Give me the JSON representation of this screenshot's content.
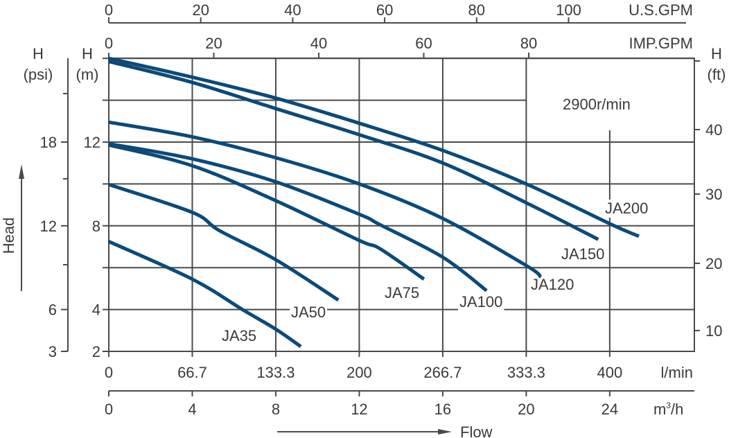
{
  "chart_data": {
    "type": "line",
    "annotation": "2900r/min",
    "colors": {
      "curve": "#0b4a7a",
      "grid": "#4a4a4a",
      "text": "#3a3a3a"
    },
    "grid": true,
    "x_axis": {
      "label": "Flow",
      "unit": "m3/h",
      "unit_main": "m",
      "unit_sup": "3",
      "unit_rest": "/h",
      "range": [
        0,
        28
      ],
      "ticks": [
        0,
        4,
        8,
        12,
        16,
        20,
        24
      ]
    },
    "x_axis_lmin": {
      "unit": "l/min",
      "ticks": [
        "0",
        "66.7",
        "133.3",
        "200",
        "266.7",
        "333.3",
        "400"
      ]
    },
    "x_axis_usgpm": {
      "unit": "U.S.GPM",
      "ticks": [
        "0",
        "20",
        "40",
        "60",
        "80",
        "100"
      ]
    },
    "x_axis_impgpm": {
      "unit": "IMP.GPM",
      "ticks": [
        "0",
        "20",
        "40",
        "60",
        "80"
      ]
    },
    "y_axis": {
      "label": "Head",
      "unit_top": "H",
      "unit": "(m)",
      "range": [
        2,
        16
      ],
      "ticks": [
        2,
        4,
        8,
        12
      ]
    },
    "y_axis_psi": {
      "unit_top": "H",
      "unit": "(psi)",
      "ticks": [
        "3",
        "6",
        "12",
        "18"
      ]
    },
    "y_axis_ft": {
      "unit_top": "H",
      "unit": "(ft)",
      "ticks": [
        "10",
        "20",
        "30",
        "40"
      ]
    },
    "series": [
      {
        "name": "JA35",
        "x": [
          0,
          4,
          6.4,
          8,
          9.2
        ],
        "y": [
          7.25,
          5.45,
          4.0,
          3.06,
          2.23
        ]
      },
      {
        "name": "JA50",
        "x": [
          0,
          4,
          5.3,
          8,
          11.0
        ],
        "y": [
          9.97,
          8.64,
          7.77,
          6.38,
          4.45
        ]
      },
      {
        "name": "JA75",
        "x": [
          0,
          4,
          8,
          12,
          13,
          15.1
        ],
        "y": [
          11.86,
          10.87,
          9.2,
          7.3,
          6.9,
          5.45
        ]
      },
      {
        "name": "JA100",
        "x": [
          0,
          4,
          8,
          12,
          13,
          16,
          18.1
        ],
        "y": [
          11.92,
          11.2,
          10.1,
          8.55,
          8.05,
          6.5,
          4.9
        ]
      },
      {
        "name": "JA120",
        "x": [
          0,
          4,
          8,
          12,
          16,
          20,
          20.7
        ],
        "y": [
          12.95,
          12.25,
          11.25,
          10.0,
          8.35,
          6.1,
          5.55
        ]
      },
      {
        "name": "JA150",
        "x": [
          0,
          4,
          8,
          12,
          16,
          20,
          23.45
        ],
        "y": [
          15.85,
          14.85,
          13.6,
          12.35,
          11.0,
          9.1,
          7.35
        ]
      },
      {
        "name": "JA200",
        "x": [
          0,
          4,
          8,
          12,
          16,
          20,
          24,
          25.4
        ],
        "y": [
          16.0,
          15.1,
          14.1,
          12.9,
          11.6,
          10.0,
          8.1,
          7.5
        ]
      }
    ]
  }
}
